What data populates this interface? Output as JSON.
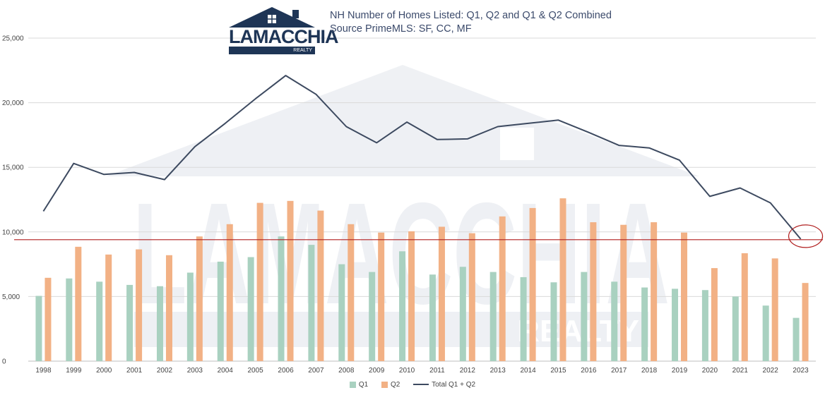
{
  "title": {
    "line1": "NH Number of Homes Listed: Q1, Q2 and Q1 & Q2 Combined",
    "line2": "Source PrimeMLS: SF, CC, MF"
  },
  "logo": {
    "word": "LAMACCHIA",
    "sub": "REALTY"
  },
  "watermark": {
    "word": "LAMACCHIA",
    "sub": "REALTY"
  },
  "colors": {
    "q1": "#a9d1c0",
    "q2": "#f2b185",
    "total": "#3d4a60",
    "reference": "#b01e1e",
    "grid": "#d9d9d9",
    "navy": "#1e3556"
  },
  "chart_data": {
    "type": "bar",
    "categories": [
      "1998",
      "1999",
      "2000",
      "2001",
      "2002",
      "2003",
      "2004",
      "2005",
      "2006",
      "2007",
      "2008",
      "2009",
      "2010",
      "2011",
      "2012",
      "2013",
      "2014",
      "2015",
      "2016",
      "2017",
      "2018",
      "2019",
      "2020",
      "2021",
      "2022",
      "2023"
    ],
    "series": [
      {
        "name": "Q1",
        "type": "bar",
        "values": [
          5050,
          6400,
          6150,
          5900,
          5800,
          6850,
          7700,
          8050,
          9650,
          9000,
          7500,
          6900,
          8500,
          6700,
          7300,
          6900,
          6500,
          6100,
          6900,
          6150,
          5700,
          5600,
          5500,
          5000,
          4300,
          3350
        ]
      },
      {
        "name": "Q2",
        "type": "bar",
        "values": [
          6450,
          8850,
          8250,
          8650,
          8200,
          9650,
          10600,
          12250,
          12400,
          11650,
          10600,
          9950,
          10050,
          10400,
          9900,
          11200,
          11850,
          12600,
          10750,
          10550,
          10750,
          9950,
          7200,
          8350,
          7950,
          6050
        ]
      },
      {
        "name": "Total Q1 + Q2",
        "type": "line",
        "values": [
          11600,
          15300,
          14450,
          14600,
          14050,
          16600,
          18400,
          20300,
          22100,
          20650,
          18150,
          16900,
          18500,
          17150,
          17200,
          18150,
          18400,
          18650,
          17700,
          16700,
          16500,
          15550,
          12750,
          13400,
          12250,
          9450
        ]
      }
    ],
    "reference_line": 9400,
    "highlight": "2023",
    "ylim": [
      0,
      25000
    ],
    "yticks": [
      "0",
      "5,000",
      "10,000",
      "15,000",
      "20,000",
      "25,000"
    ],
    "ytick_values": [
      0,
      5000,
      10000,
      15000,
      20000,
      25000
    ],
    "grid": true,
    "legend": "bottom-center"
  }
}
